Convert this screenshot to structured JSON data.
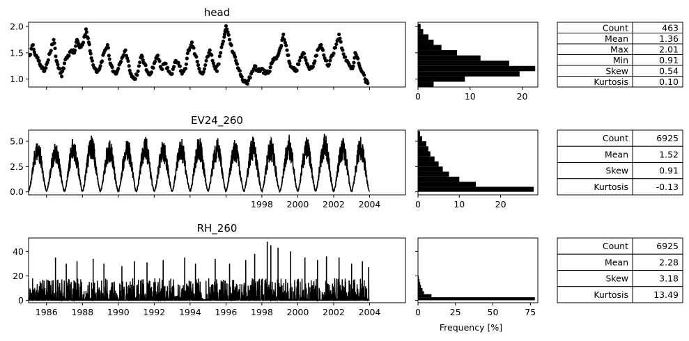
{
  "figure": {
    "xlabel": "Frequency [%]"
  },
  "colors": {
    "series": "#000000",
    "axis": "#000000",
    "background": "#ffffff"
  },
  "chart_data": [
    {
      "type": "scatter",
      "title": "head",
      "xlim": [
        1985.0,
        2006.0
      ],
      "ylim": [
        0.85,
        2.08
      ],
      "yticks": [
        1.0,
        1.5,
        2.0
      ],
      "ytick_labels": [
        "1.0",
        "1.5",
        "2.0"
      ],
      "series": [
        {
          "x": [
            1985.05,
            1985.25,
            1985.4,
            1985.55,
            1985.7,
            1985.85,
            1986.0,
            1986.2,
            1986.4,
            1986.55,
            1986.7,
            1986.85,
            1987.0,
            1987.2,
            1987.4,
            1987.55,
            1987.7,
            1987.85,
            1988.0,
            1988.2,
            1988.35,
            1988.5,
            1988.7,
            1988.85,
            1989.0,
            1989.2,
            1989.4,
            1989.55,
            1989.7,
            1989.85,
            1990.0,
            1990.2,
            1990.4,
            1990.6,
            1990.75,
            1990.9,
            1991.1,
            1991.3,
            1991.45,
            1991.6,
            1991.8,
            1992.0,
            1992.2,
            1992.4,
            1992.6,
            1992.8,
            1993.0,
            1993.2,
            1993.4,
            1993.55,
            1993.75,
            1993.9,
            1994.1,
            1994.3,
            1994.5,
            1994.7,
            1994.9,
            1995.1,
            1995.3,
            1995.5,
            1995.7,
            1995.9,
            1996.0,
            1996.2,
            1996.4,
            1996.55,
            1996.7,
            1996.85,
            1997.0,
            1997.2,
            1997.4,
            1997.6,
            1997.8,
            1998.0,
            1998.2,
            1998.4,
            1998.55,
            1998.7,
            1998.9,
            1999.05,
            1999.2,
            1999.4,
            1999.55,
            1999.75,
            1999.9,
            2000.1,
            2000.3,
            2000.5,
            2000.7,
            2000.9,
            2001.1,
            2001.3,
            2001.5,
            2001.7,
            2001.9,
            2002.1,
            2002.3,
            2002.5,
            2002.7,
            2002.9,
            2003.05,
            2003.2,
            2003.4,
            2003.55,
            2003.75,
            2003.9
          ],
          "y": [
            1.45,
            1.65,
            1.45,
            1.35,
            1.25,
            1.15,
            1.28,
            1.5,
            1.75,
            1.35,
            1.2,
            1.05,
            1.3,
            1.45,
            1.55,
            1.5,
            1.75,
            1.6,
            1.65,
            1.95,
            1.7,
            1.4,
            1.2,
            1.15,
            1.25,
            1.5,
            1.65,
            1.3,
            1.15,
            1.1,
            1.2,
            1.4,
            1.55,
            1.25,
            1.05,
            1.0,
            1.15,
            1.45,
            1.3,
            1.15,
            1.1,
            1.3,
            1.45,
            1.2,
            1.3,
            1.15,
            1.1,
            1.35,
            1.25,
            1.1,
            1.2,
            1.55,
            1.7,
            1.45,
            1.2,
            1.1,
            1.35,
            1.55,
            1.3,
            1.15,
            1.5,
            1.8,
            2.01,
            1.75,
            1.5,
            1.35,
            1.2,
            1.05,
            0.95,
            0.91,
            1.1,
            1.25,
            1.15,
            1.2,
            1.1,
            1.15,
            1.3,
            1.4,
            1.45,
            1.6,
            1.85,
            1.55,
            1.3,
            1.2,
            1.15,
            1.35,
            1.5,
            1.3,
            1.2,
            1.3,
            1.55,
            1.65,
            1.4,
            1.25,
            1.45,
            1.6,
            1.85,
            1.55,
            1.35,
            1.25,
            1.2,
            1.5,
            1.3,
            1.15,
            1.0,
            0.92
          ]
        }
      ],
      "histogram": {
        "bin_edges": [
          0.85,
          0.95,
          1.05,
          1.15,
          1.25,
          1.35,
          1.45,
          1.55,
          1.65,
          1.75,
          1.85,
          1.95,
          2.05
        ],
        "frequency": [
          3.0,
          9.0,
          19.5,
          22.5,
          17.5,
          12.0,
          7.5,
          4.5,
          3.0,
          2.0,
          1.0,
          0.5
        ],
        "xlim": [
          0,
          23
        ],
        "xticks": [
          0,
          10,
          20
        ],
        "xtick_labels": [
          "0",
          "10",
          "20"
        ]
      },
      "stats": [
        {
          "label": "Count",
          "value": "463"
        },
        {
          "label": "Mean",
          "value": "1.36"
        },
        {
          "label": "Max",
          "value": "2.01"
        },
        {
          "label": "Min",
          "value": "0.91"
        },
        {
          "label": "Skew",
          "value": "0.54"
        },
        {
          "label": "Kurtosis",
          "value": "0.10"
        }
      ]
    },
    {
      "type": "line",
      "title": "EV24_260",
      "xlim": [
        1985.0,
        2006.0
      ],
      "ylim": [
        -0.3,
        6.1
      ],
      "yticks": [
        0.0,
        2.5,
        5.0
      ],
      "ytick_labels": [
        "0.0",
        "2.5",
        "5.0"
      ],
      "xticks": [
        1998,
        2000,
        2002,
        2004
      ],
      "xtick_labels": [
        "1998",
        "2000",
        "2002",
        "2004"
      ],
      "series": [
        {
          "x_start": 1985.0,
          "x_end": 2004.0,
          "annual_peak": [
            5.3,
            5.0,
            5.4,
            5.6,
            5.2,
            5.4,
            5.5,
            5.1,
            5.3,
            5.5,
            5.4,
            5.2,
            5.5,
            5.3,
            5.6,
            5.5,
            5.8,
            5.4,
            5.5
          ]
        }
      ],
      "histogram": {
        "bin_edges": [
          0.0,
          0.5,
          1.0,
          1.5,
          2.0,
          2.5,
          3.0,
          3.5,
          4.0,
          4.5,
          5.0,
          5.5,
          6.0
        ],
        "frequency": [
          28.0,
          14.0,
          10.0,
          7.5,
          6.0,
          5.0,
          4.0,
          3.0,
          2.5,
          2.0,
          1.0,
          0.5
        ],
        "xlim": [
          0,
          29
        ],
        "xticks": [
          0,
          10,
          20
        ],
        "xtick_labels": [
          "0",
          "10",
          "20"
        ]
      },
      "stats": [
        {
          "label": "Count",
          "value": "6925"
        },
        {
          "label": "Mean",
          "value": "1.52"
        },
        {
          "label": "Skew",
          "value": "0.91"
        },
        {
          "label": "Kurtosis",
          "value": "-0.13"
        }
      ]
    },
    {
      "type": "line",
      "title": "RH_260",
      "xlim": [
        1985.0,
        2006.0
      ],
      "ylim": [
        -2.0,
        51.0
      ],
      "yticks": [
        0,
        20,
        40
      ],
      "ytick_labels": [
        "0",
        "20",
        "40"
      ],
      "xticks": [
        1986,
        1988,
        1990,
        1992,
        1994,
        1996,
        1998,
        2000,
        2002,
        2004
      ],
      "xtick_labels": [
        "1986",
        "1988",
        "1990",
        "1992",
        "1994",
        "1996",
        "1998",
        "2000",
        "2002",
        "2004"
      ],
      "series": [
        {
          "x_start": 1985.0,
          "x_end": 2004.0,
          "peaks": [
            [
              1986.5,
              35
            ],
            [
              1987.1,
              30
            ],
            [
              1987.7,
              32
            ],
            [
              1988.6,
              34
            ],
            [
              1989.2,
              30
            ],
            [
              1990.2,
              28
            ],
            [
              1990.9,
              32
            ],
            [
              1991.6,
              31
            ],
            [
              1992.5,
              33
            ],
            [
              1993.7,
              35
            ],
            [
              1994.3,
              30
            ],
            [
              1995.4,
              34
            ],
            [
              1996.2,
              30
            ],
            [
              1997.1,
              33
            ],
            [
              1997.6,
              38
            ],
            [
              1998.3,
              48
            ],
            [
              1998.5,
              45
            ],
            [
              1998.9,
              43
            ],
            [
              1999.6,
              40
            ],
            [
              2000.4,
              35
            ],
            [
              2001.1,
              33
            ],
            [
              2001.6,
              36
            ],
            [
              2002.3,
              35
            ],
            [
              2003.0,
              30
            ],
            [
              2003.6,
              32
            ],
            [
              2003.95,
              27
            ]
          ]
        }
      ],
      "histogram": {
        "bin_edges": [
          0,
          2.5,
          5,
          7.5,
          10,
          12.5,
          15,
          17.5,
          20
        ],
        "frequency": [
          78.0,
          9.0,
          4.0,
          3.0,
          2.0,
          1.5,
          1.0,
          0.5
        ],
        "xlim": [
          0,
          80
        ],
        "xticks": [
          0,
          25,
          50,
          75
        ],
        "xtick_labels": [
          "0",
          "25",
          "50",
          "75"
        ]
      },
      "stats": [
        {
          "label": "Count",
          "value": "6925"
        },
        {
          "label": "Mean",
          "value": "2.28"
        },
        {
          "label": "Skew",
          "value": "3.18"
        },
        {
          "label": "Kurtosis",
          "value": "13.49"
        }
      ]
    }
  ]
}
